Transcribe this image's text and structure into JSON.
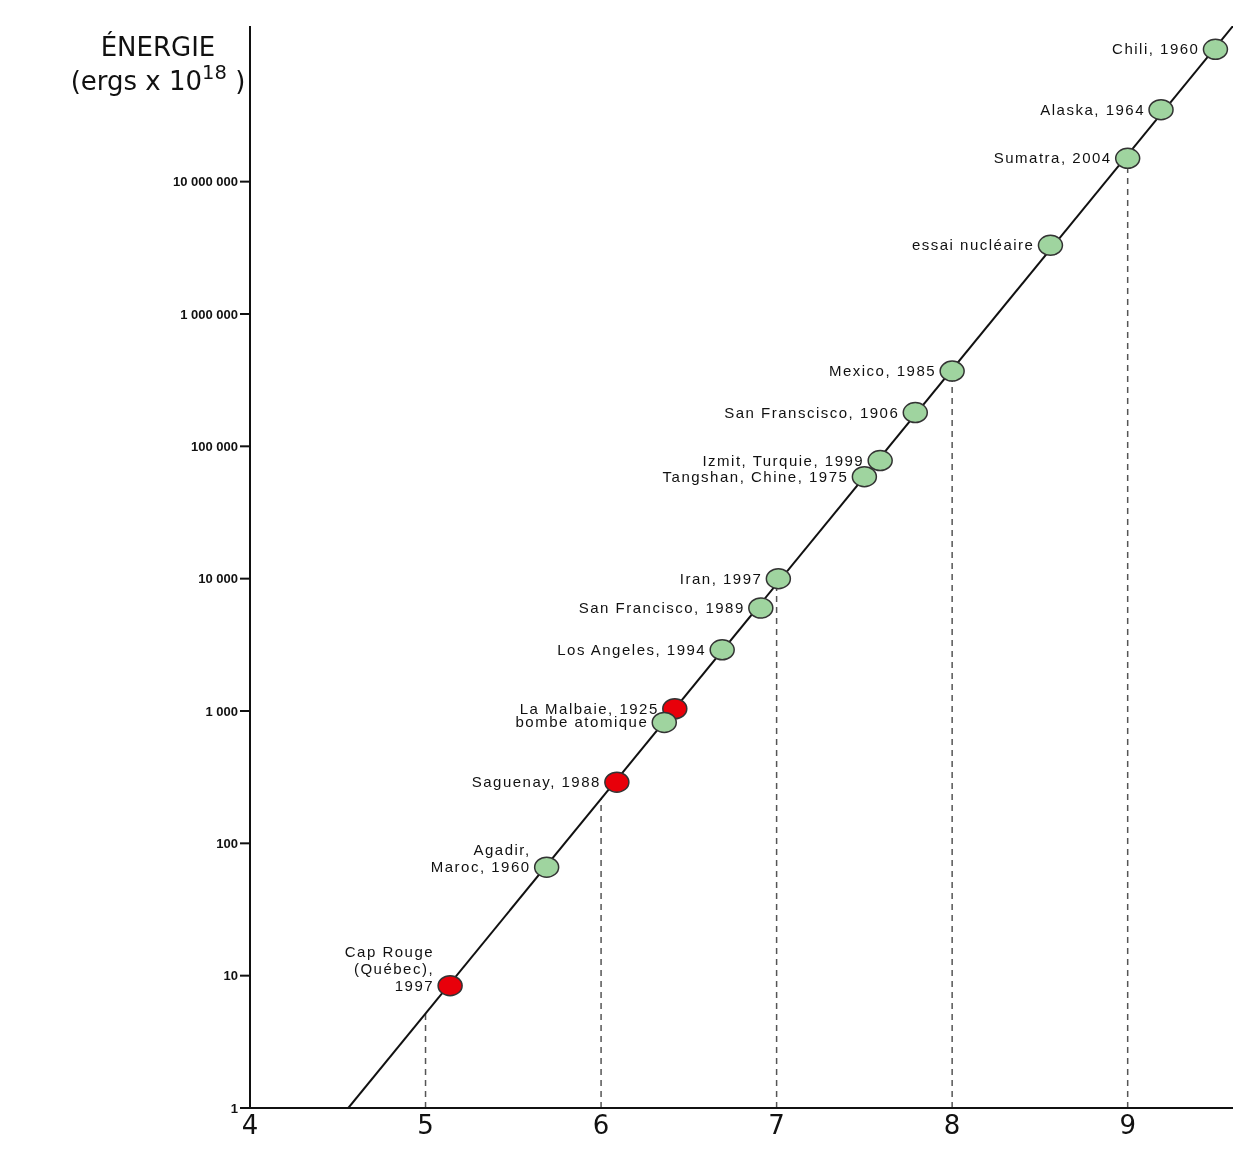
{
  "chart_data": {
    "type": "scatter",
    "ylabel": "ÉNERGIE\n(ergs x 10$^{18}$ )",
    "log": "y",
    "grid": false,
    "marker": "circle",
    "xlim": [
      4,
      9.6
    ],
    "xticks": [
      4,
      5,
      6,
      7,
      8,
      9
    ],
    "ylim": [
      1,
      150000000
    ],
    "yticks": [
      1,
      10,
      100,
      {
        "value": 1000,
        "label": "1 000"
      },
      {
        "value": 10000,
        "label": "10 000"
      },
      {
        "value": 100000,
        "label": "100 000"
      },
      {
        "value": 1000000,
        "label": "1 000 000"
      },
      {
        "value": 10000000,
        "label": "10 000 000"
      }
    ],
    "ref_lines": [
      {
        "axis": "x",
        "value": 5,
        "line_style": "dashed",
        "color": "#555555"
      },
      {
        "axis": "x",
        "value": 6,
        "line_style": "dashed",
        "color": "#555555"
      },
      {
        "axis": "x",
        "value": 7,
        "line_style": "dashed",
        "color": "#555555"
      },
      {
        "axis": "x",
        "value": 8,
        "line_style": "dashed",
        "color": "#555555"
      },
      {
        "axis": "x",
        "value": 9,
        "line_style": "dashed",
        "color": "#555555"
      }
    ],
    "series": [
      {
        "type": "line",
        "color": "#111111",
        "line_style": "solid",
        "marker": "none",
        "x": [
          4.56,
          9.6
        ],
        "values": [
          1,
          150000000
        ]
      },
      {
        "name": "Chili, 1960",
        "color": "#9fd49f",
        "x": [
          9.5
        ],
        "values": [
          100000000
        ]
      },
      {
        "name": "Alaska, 1964",
        "color": "#9fd49f",
        "x": [
          9.19
        ],
        "values": [
          35000000
        ]
      },
      {
        "name": "Sumatra, 2004",
        "color": "#9fd49f",
        "x": [
          9.0
        ],
        "values": [
          15000000
        ]
      },
      {
        "name": "essai nucléaire",
        "color": "#9fd49f",
        "x": [
          8.56
        ],
        "values": [
          3300000
        ]
      },
      {
        "name": "Mexico, 1985",
        "color": "#9fd49f",
        "x": [
          8.0
        ],
        "values": [
          370000
        ]
      },
      {
        "name": "San Franscisco, 1906",
        "color": "#9fd49f",
        "x": [
          7.79
        ],
        "values": [
          180000
        ]
      },
      {
        "name": "Izmit, Turquie, 1999",
        "color": "#9fd49f",
        "x": [
          7.59
        ],
        "values": [
          78000
        ]
      },
      {
        "name": "Tangshan, Chine, 1975",
        "color": "#9fd49f",
        "x": [
          7.5
        ],
        "values": [
          59000
        ]
      },
      {
        "name": "Iran, 1997",
        "color": "#9fd49f",
        "x": [
          7.01
        ],
        "values": [
          10000
        ]
      },
      {
        "name": "San Francisco, 1989",
        "color": "#9fd49f",
        "x": [
          6.91
        ],
        "values": [
          6000
        ]
      },
      {
        "name": "Los Angeles, 1994",
        "color": "#9fd49f",
        "x": [
          6.69
        ],
        "values": [
          2900
        ]
      },
      {
        "name": "La Malbaie, 1925",
        "color": "#e8000a",
        "x": [
          6.42
        ],
        "values": [
          1040
        ]
      },
      {
        "name": "bombe atomique",
        "color": "#9fd49f",
        "x": [
          6.36
        ],
        "values": [
          820
        ]
      },
      {
        "name": "Saguenay, 1988",
        "color": "#e8000a",
        "x": [
          6.09
        ],
        "values": [
          290
        ]
      },
      {
        "name": "Agadir,\nMaroc, 1960",
        "color": "#9fd49f",
        "x": [
          5.69
        ],
        "values": [
          66
        ]
      },
      {
        "name": "Cap Rouge\n(Québec),\n1997",
        "color": "#e8000a",
        "x": [
          5.14
        ],
        "values": [
          8.4
        ]
      }
    ]
  }
}
